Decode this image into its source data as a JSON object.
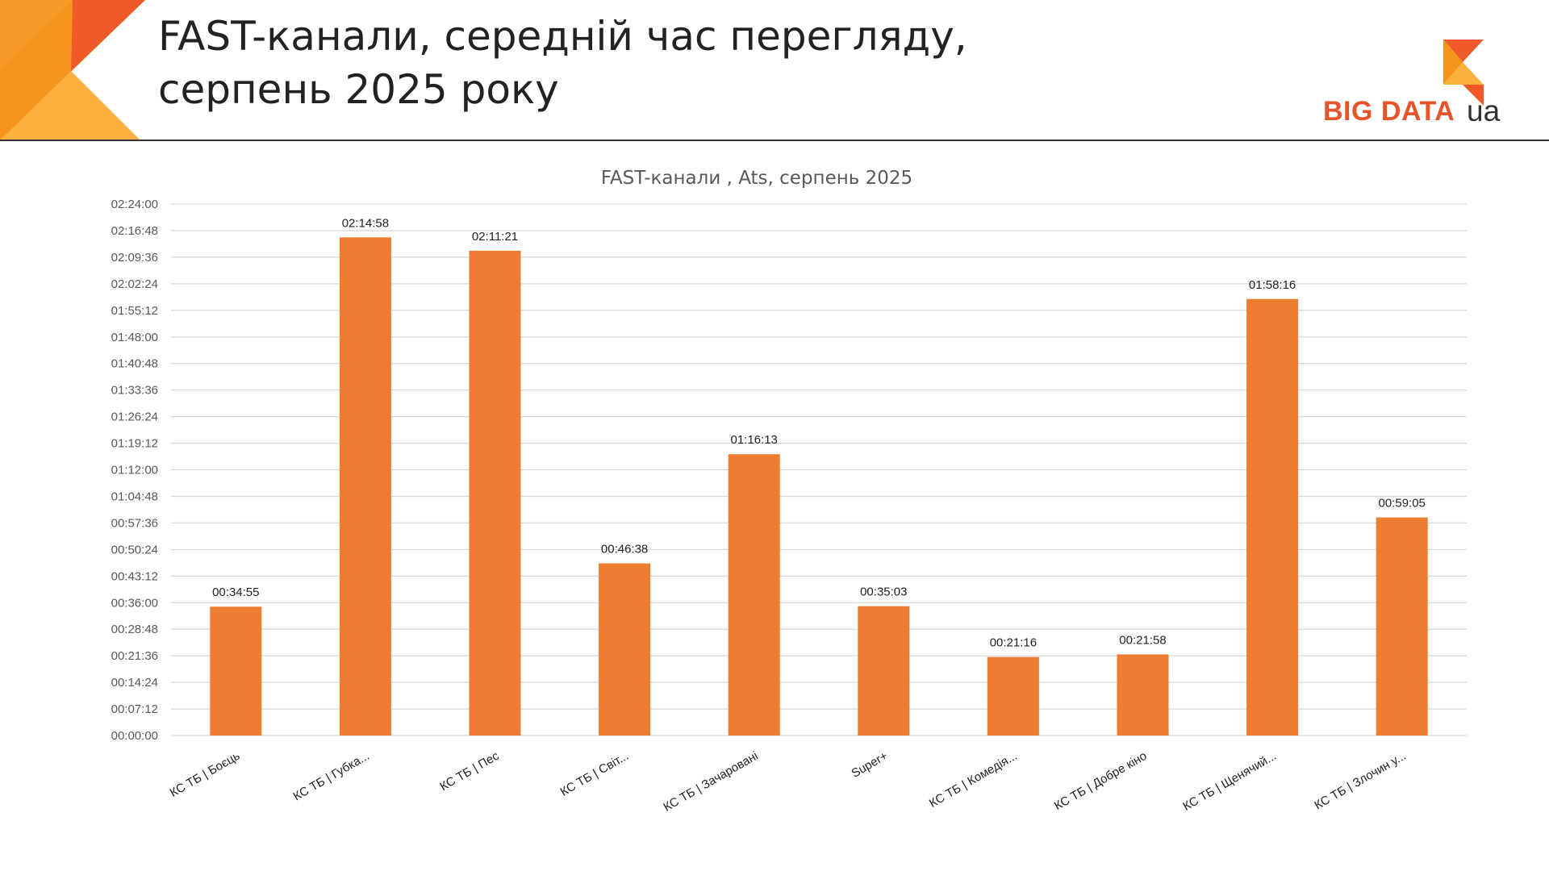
{
  "slide": {
    "title_line1": "FAST-канали, середній час перегляду,",
    "title_line2": "серпень 2025 року",
    "logo_text": "BIG DATA",
    "logo_suffix": "ua"
  },
  "colors": {
    "bar": "#ed7d31",
    "accent_dark": "#f05a28",
    "accent_light": "#fbb040",
    "accent_mid": "#f7941d",
    "grid": "#d9d9d9"
  },
  "chart_data": {
    "type": "bar",
    "title": "FAST-канали , Ats, серпень 2025",
    "categories": [
      "КС ТБ | Боєць",
      "КС ТБ | Губка...",
      "КС ТБ | Пес",
      "КС ТБ | Світ...",
      "КС ТБ | Зачаровані",
      "Super+",
      "КС ТБ | Комедія...",
      "КС ТБ | Добре кіно",
      "КС ТБ | Щенячий...",
      "КС ТБ | Злочин у..."
    ],
    "values": [
      "00:34:55",
      "02:14:58",
      "02:11:21",
      "00:46:38",
      "01:16:13",
      "00:35:03",
      "00:21:16",
      "00:21:58",
      "01:58:16",
      "00:59:05"
    ],
    "yticks": [
      "00:00:00",
      "00:07:12",
      "00:14:24",
      "00:21:36",
      "00:28:48",
      "00:36:00",
      "00:43:12",
      "00:50:24",
      "00:57:36",
      "01:04:48",
      "01:12:00",
      "01:19:12",
      "01:26:24",
      "01:33:36",
      "01:40:48",
      "01:48:00",
      "01:55:12",
      "02:02:24",
      "02:09:36",
      "02:16:48",
      "02:24:00"
    ],
    "ylim": [
      "00:00:00",
      "02:24:00"
    ],
    "grid": true,
    "legend": "none"
  }
}
